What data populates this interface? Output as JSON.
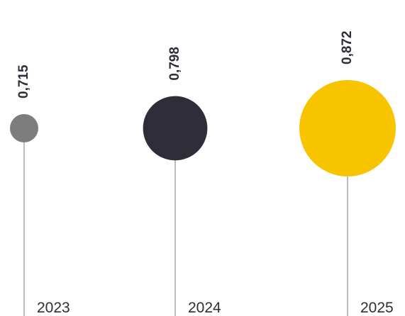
{
  "chart_data": {
    "type": "scatter",
    "categories": [
      "2023",
      "2024",
      "2025"
    ],
    "values": [
      0.715,
      0.798,
      0.872
    ],
    "value_labels": [
      "0,715",
      "0,798",
      "0,872"
    ],
    "colors": [
      "#7d7d7d",
      "#2e2d38",
      "#f8c400"
    ],
    "title": "",
    "xlabel": "",
    "ylabel": "",
    "grid": false,
    "legend": "none"
  }
}
